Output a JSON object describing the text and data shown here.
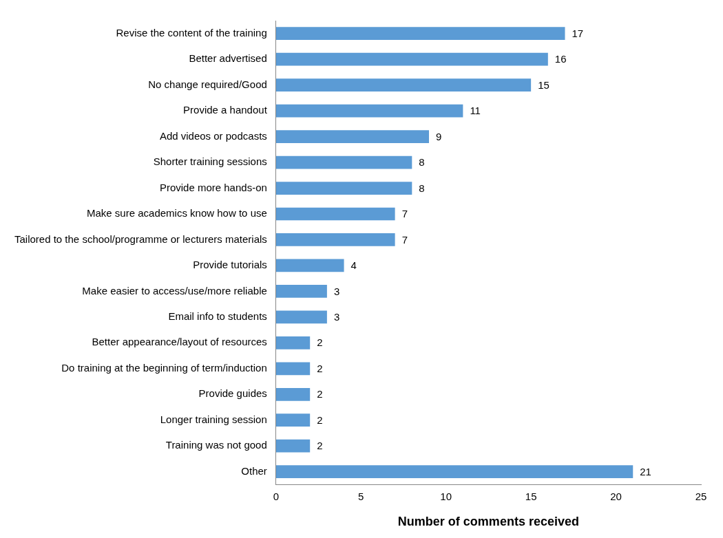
{
  "chart_data": {
    "type": "bar",
    "orientation": "horizontal",
    "xlabel": "Number of comments received",
    "categories": [
      "Revise the content of the training",
      "Better advertised",
      "No change required/Good",
      "Provide a handout",
      "Add videos or podcasts",
      "Shorter training sessions",
      "Provide more hands-on",
      "Make sure academics know how to use",
      "Tailored to the school/programme or lecturers materials",
      "Provide tutorials",
      "Make easier to access/use/more reliable",
      "Email info to students",
      "Better appearance/layout of resources",
      "Do training at the beginning of term/induction",
      "Provide guides",
      "Longer training session",
      "Training was not good",
      "Other"
    ],
    "values": [
      17,
      16,
      15,
      11,
      9,
      8,
      8,
      7,
      7,
      4,
      3,
      3,
      2,
      2,
      2,
      2,
      2,
      21
    ],
    "color": "#5b9bd5",
    "xlim": [
      0,
      25
    ],
    "xticks": [
      0,
      5,
      10,
      15,
      20,
      25
    ],
    "data_labels": true
  }
}
